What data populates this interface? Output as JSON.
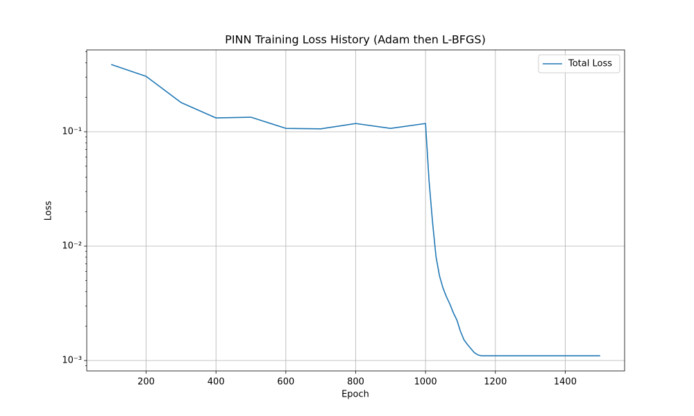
{
  "chart_data": {
    "type": "line",
    "title": "PINN Training Loss History (Adam then L-BFGS)",
    "xlabel": "Epoch",
    "ylabel": "Loss",
    "x": [
      100,
      200,
      300,
      400,
      500,
      600,
      700,
      800,
      900,
      1000,
      1010,
      1020,
      1030,
      1040,
      1050,
      1060,
      1070,
      1080,
      1090,
      1100,
      1110,
      1120,
      1130,
      1140,
      1150,
      1160,
      1200,
      1300,
      1400,
      1500
    ],
    "series": [
      {
        "name": "Total Loss",
        "color": "#1f77b4",
        "values": [
          0.387,
          0.305,
          0.18,
          0.132,
          0.134,
          0.107,
          0.106,
          0.118,
          0.107,
          0.118,
          0.0377,
          0.0163,
          0.0081,
          0.0055,
          0.0043,
          0.0036,
          0.0031,
          0.0026,
          0.00225,
          0.0018,
          0.00152,
          0.00138,
          0.00127,
          0.00117,
          0.00112,
          0.0011,
          0.0011,
          0.0011,
          0.0011,
          0.0011
        ]
      }
    ],
    "xlim": [
      30,
      1570
    ],
    "xticks": [
      200,
      400,
      600,
      800,
      1000,
      1200,
      1400
    ],
    "ylim": [
      0.000811,
      0.519
    ],
    "ylog": true,
    "yticks": [
      {
        "value": 0.001,
        "label": "10⁻³"
      },
      {
        "value": 0.01,
        "label": "10⁻²"
      },
      {
        "value": 0.1,
        "label": "10⁻¹"
      }
    ],
    "yminorticks": [
      0.0009,
      0.002,
      0.003,
      0.004,
      0.005,
      0.006,
      0.007,
      0.008,
      0.009,
      0.02,
      0.03,
      0.04,
      0.05,
      0.06,
      0.07,
      0.08,
      0.09,
      0.2,
      0.3,
      0.4,
      0.5
    ],
    "grid": true,
    "legend": "upper-right"
  }
}
